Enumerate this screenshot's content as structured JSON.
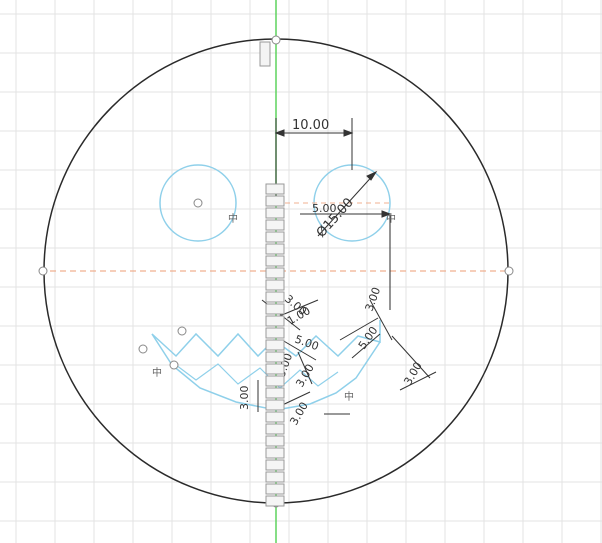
{
  "dimensions": {
    "top_width": "10.00",
    "eye_diameter": "Ø15.00",
    "eye_offset": "5.00",
    "mouth_a": "3.00",
    "mouth_b": "1.00",
    "mouth_c": "5.00",
    "mouth_d": "3.00",
    "mouth_e": "3.00",
    "mouth_f": "3.00",
    "mouth_g": "3.00",
    "mouth_h": "5.00",
    "mouth_i": "3.00",
    "mouth_j": "3.00"
  },
  "constraint_glyph": "中",
  "colors": {
    "grid": "#e3e3e3",
    "profile": "#2a2a2a",
    "axis_y": "#5fd35f",
    "axis_x": "#f0b090",
    "sketch_blue": "#8fd0ea",
    "dimension": "#333333"
  }
}
